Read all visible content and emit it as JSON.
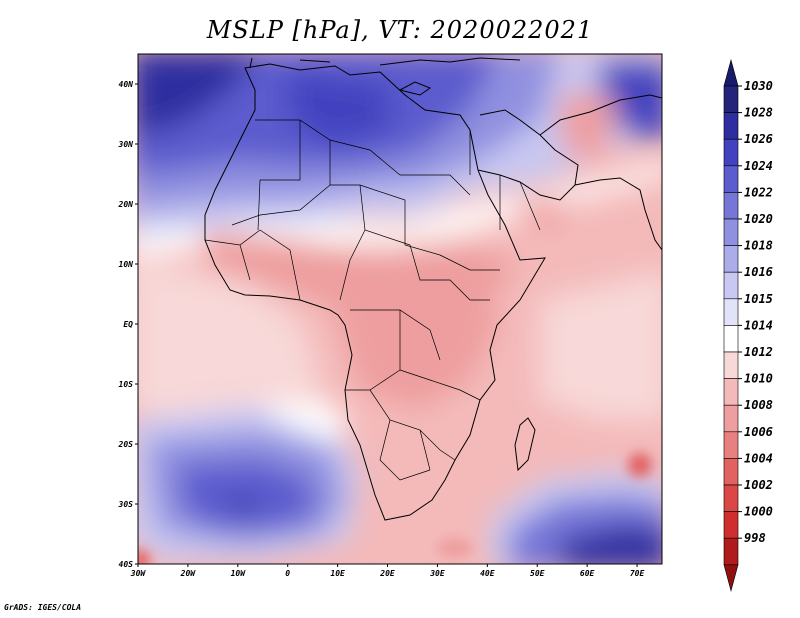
{
  "title": "MSLP [hPa], VT: 2020022021",
  "map": {
    "lat_ticks": [
      "40N",
      "30N",
      "20N",
      "10N",
      "EQ",
      "10S",
      "20S",
      "30S",
      "40S"
    ],
    "lon_ticks": [
      "30W",
      "20W",
      "10W",
      "0",
      "10E",
      "20E",
      "30E",
      "40E",
      "50E",
      "60E",
      "70E"
    ],
    "extent": {
      "lon_min": -30,
      "lon_max": 75,
      "lat_min": -40,
      "lat_max": 45
    }
  },
  "colorbar": {
    "labels": [
      "1030",
      "1028",
      "1026",
      "1024",
      "1022",
      "1020",
      "1018",
      "1016",
      "1015",
      "1014",
      "1012",
      "1010",
      "1008",
      "1006",
      "1004",
      "1002",
      "1000",
      "998"
    ],
    "colors": [
      "#24247a",
      "#2e2ea0",
      "#4242c0",
      "#5c5cce",
      "#7676d8",
      "#9090e0",
      "#acacea",
      "#c8c8f2",
      "#e2e2f8",
      "#ffffff",
      "#f8d8d8",
      "#f4baba",
      "#ee9e9e",
      "#e88080",
      "#e26262",
      "#dc4646",
      "#d02e2e",
      "#b01c1c"
    ],
    "top_arrow_color": "#1a1a6a",
    "bottom_arrow_color": "#8e1010"
  },
  "credit": "GrADS: IGES/COLA"
}
